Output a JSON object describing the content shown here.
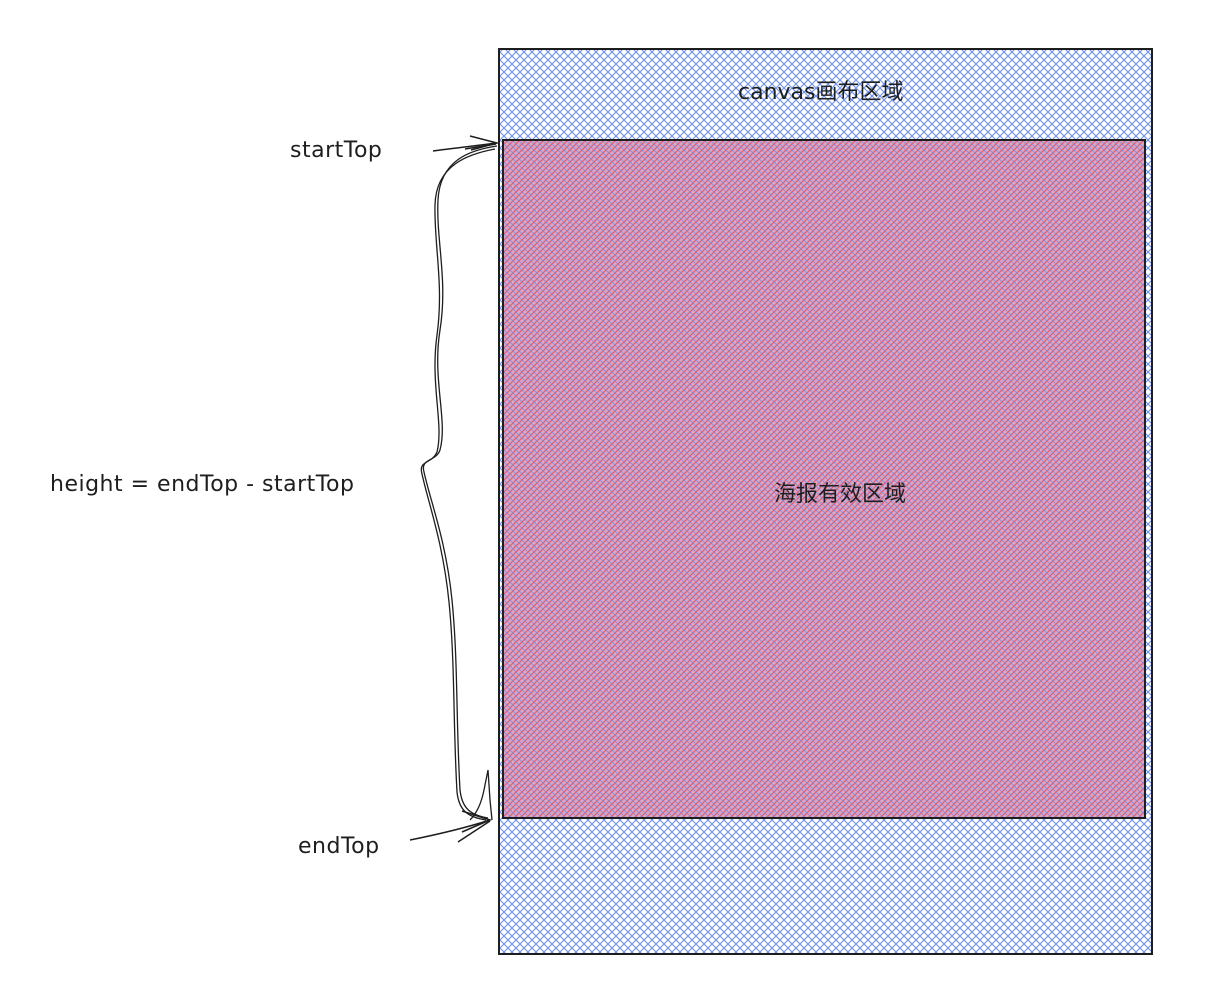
{
  "canvas_region": {
    "label": "canvas画布区域",
    "fill_color": "#6c8ff0",
    "stroke_color": "#1e1e1e"
  },
  "poster_region": {
    "label": "海报有效区域",
    "fill_color": "#e66b7a",
    "stroke_color": "#1e1e1e"
  },
  "annotations": {
    "start_top": "startTop",
    "end_top": "endTop",
    "height_formula": "height = endTop - startTop"
  }
}
